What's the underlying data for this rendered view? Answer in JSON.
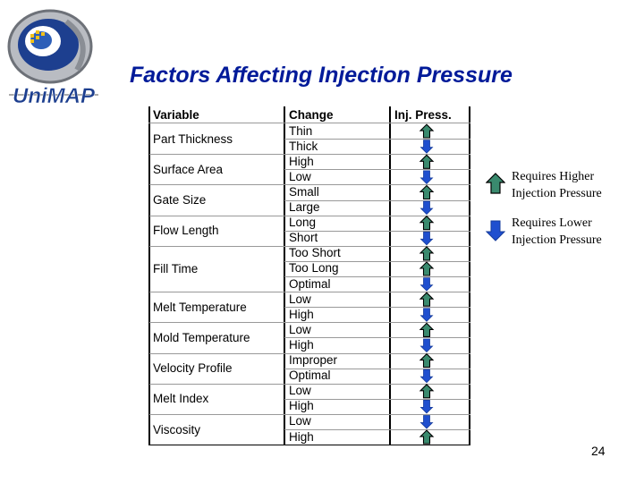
{
  "slide": {
    "title": "Factors Affecting Injection Pressure",
    "page_number": "24",
    "logo_text": "UniMAP"
  },
  "colors": {
    "title": "#001a99",
    "higher_arrow": "#3a8a6e",
    "lower_arrow": "#1f4fcf"
  },
  "table": {
    "headers": [
      "Variable",
      "Change",
      "Inj. Press."
    ],
    "variables": [
      {
        "name": "Part Thickness",
        "rows": [
          0,
          1
        ]
      },
      {
        "name": "Surface Area",
        "rows": [
          2,
          3
        ]
      },
      {
        "name": "Gate Size",
        "rows": [
          4,
          5
        ]
      },
      {
        "name": "Flow Length",
        "rows": [
          6,
          7
        ]
      },
      {
        "name": "Fill Time",
        "rows": [
          8,
          9,
          10
        ]
      },
      {
        "name": "Melt Temperature",
        "rows": [
          11,
          12
        ]
      },
      {
        "name": "Mold Temperature",
        "rows": [
          13,
          14
        ]
      },
      {
        "name": "Velocity Profile",
        "rows": [
          15,
          16
        ]
      },
      {
        "name": "Melt Index",
        "rows": [
          17,
          18
        ]
      },
      {
        "name": "Viscosity",
        "rows": [
          19,
          20
        ]
      }
    ],
    "rows": [
      {
        "change": "Thin",
        "effect": "up"
      },
      {
        "change": "Thick",
        "effect": "down"
      },
      {
        "change": "High",
        "effect": "up"
      },
      {
        "change": "Low",
        "effect": "down"
      },
      {
        "change": "Small",
        "effect": "up"
      },
      {
        "change": "Large",
        "effect": "down"
      },
      {
        "change": "Long",
        "effect": "up"
      },
      {
        "change": "Short",
        "effect": "down"
      },
      {
        "change": "Too Short",
        "effect": "up"
      },
      {
        "change": "Too Long",
        "effect": "up"
      },
      {
        "change": "Optimal",
        "effect": "down"
      },
      {
        "change": "Low",
        "effect": "up"
      },
      {
        "change": "High",
        "effect": "down"
      },
      {
        "change": "Low",
        "effect": "up"
      },
      {
        "change": "High",
        "effect": "down"
      },
      {
        "change": "Improper",
        "effect": "up"
      },
      {
        "change": "Optimal",
        "effect": "down"
      },
      {
        "change": "Low",
        "effect": "up"
      },
      {
        "change": "High",
        "effect": "down"
      },
      {
        "change": "Low",
        "effect": "down"
      },
      {
        "change": "High",
        "effect": "up"
      }
    ]
  },
  "legend": {
    "higher": {
      "line1": "Requires Higher",
      "line2": "Injection Pressure",
      "icon": "arrow-up-icon"
    },
    "lower": {
      "line1": "Requires Lower",
      "line2": "Injection Pressure",
      "icon": "arrow-down-icon"
    }
  }
}
